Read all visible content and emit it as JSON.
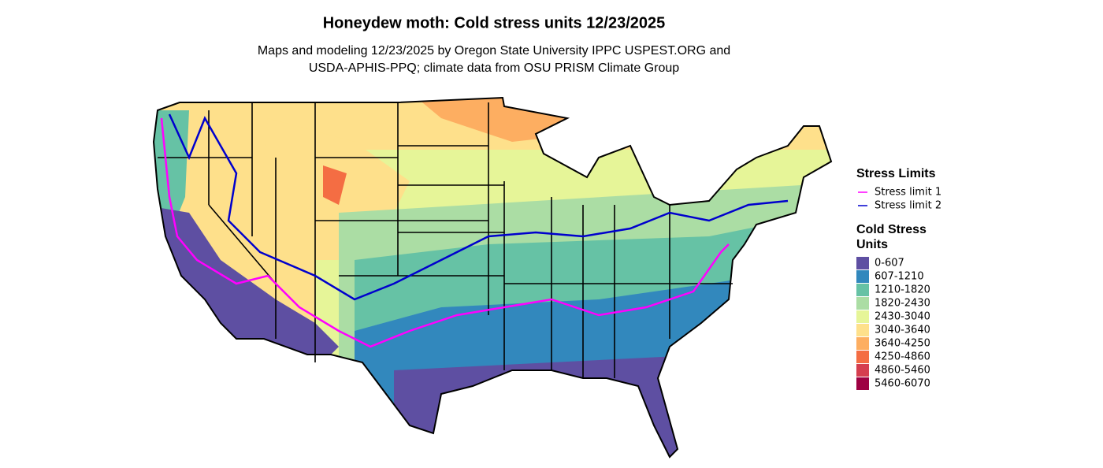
{
  "title": "Honeydew moth: Cold stress units 12/23/2025",
  "subtitle": [
    "Maps and modeling 12/23/2025 by Oregon State University IPPC USPEST.ORG and",
    "USDA-APHIS-PPQ; climate data from OSU PRISM Climate Group"
  ],
  "legend": {
    "limits": {
      "title": "Stress Limits",
      "items": [
        {
          "label": "Stress limit 1",
          "color": "#ff00ff"
        },
        {
          "label": "Stress limit 2",
          "color": "#0000cd"
        }
      ]
    },
    "units": {
      "title": [
        "Cold Stress",
        "Units"
      ],
      "items": [
        {
          "label": "0-607",
          "color": "#5e4fa2"
        },
        {
          "label": "607-1210",
          "color": "#3288bd"
        },
        {
          "label": "1210-1820",
          "color": "#66c2a5"
        },
        {
          "label": "1820-2430",
          "color": "#abdda4"
        },
        {
          "label": "2430-3040",
          "color": "#e6f598"
        },
        {
          "label": "3040-3640",
          "color": "#fee08b"
        },
        {
          "label": "3640-4250",
          "color": "#fdae61"
        },
        {
          "label": "4250-4860",
          "color": "#f46d43"
        },
        {
          "label": "4860-5460",
          "color": "#d53e4f"
        },
        {
          "label": "5460-6070",
          "color": "#9e0142"
        }
      ]
    }
  }
}
